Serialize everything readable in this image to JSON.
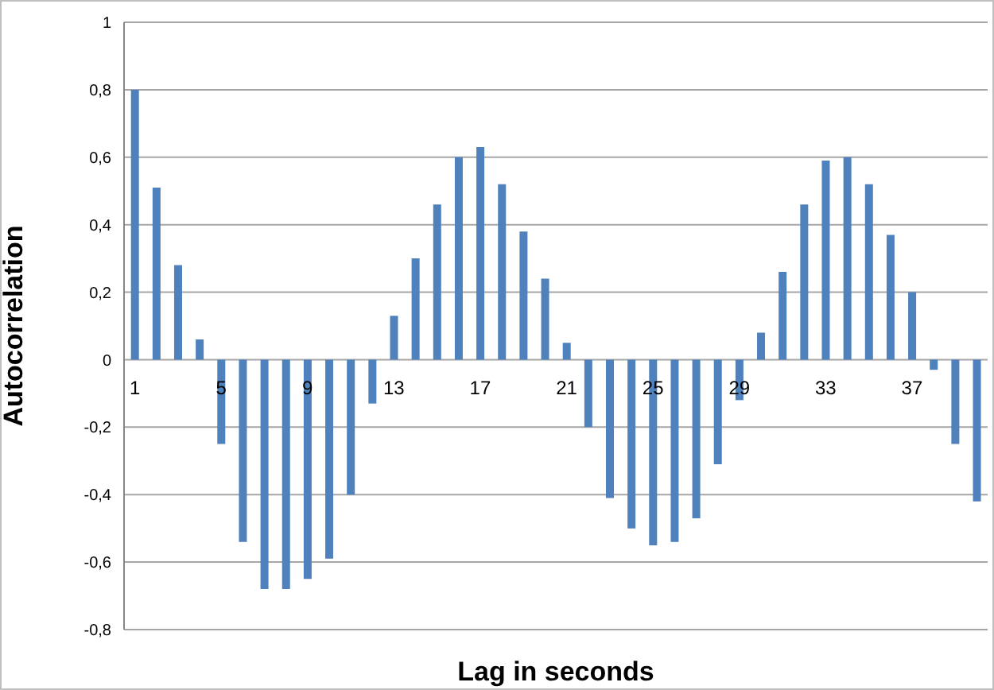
{
  "chart_data": {
    "type": "bar",
    "xlabel": "Lag in seconds",
    "ylabel": "Autocorrelation",
    "categories": [
      "1",
      null,
      null,
      null,
      "5",
      null,
      null,
      null,
      "9",
      null,
      null,
      null,
      "13",
      null,
      null,
      null,
      "17",
      null,
      null,
      null,
      "21",
      null,
      null,
      null,
      "25",
      null,
      null,
      null,
      "29",
      null,
      null,
      null,
      "33",
      null,
      null,
      null,
      "37",
      null,
      null,
      null
    ],
    "values": [
      0.8,
      0.51,
      0.28,
      0.06,
      -0.25,
      -0.54,
      -0.68,
      -0.68,
      -0.65,
      -0.59,
      -0.4,
      -0.13,
      0.13,
      0.3,
      0.46,
      0.6,
      0.63,
      0.52,
      0.38,
      0.24,
      0.05,
      -0.2,
      -0.41,
      -0.5,
      -0.55,
      -0.54,
      -0.47,
      -0.31,
      -0.12,
      0.08,
      0.26,
      0.46,
      0.59,
      0.6,
      0.52,
      0.37,
      0.2,
      -0.03,
      -0.25,
      -0.42
    ],
    "color": "#4f81bd",
    "ylim": [
      -0.8,
      1
    ],
    "yticks": [
      {
        "value": -0.8,
        "label": "-0,8"
      },
      {
        "value": -0.6,
        "label": "-0,6"
      },
      {
        "value": -0.4,
        "label": "-0,4"
      },
      {
        "value": -0.2,
        "label": "-0,2"
      },
      0,
      {
        "value": 0.2,
        "label": "0,2"
      },
      {
        "value": 0.4,
        "label": "0,4"
      },
      {
        "value": 0.6,
        "label": "0,6"
      },
      {
        "value": 0.8,
        "label": "0,8"
      },
      1
    ],
    "grid": "y"
  }
}
